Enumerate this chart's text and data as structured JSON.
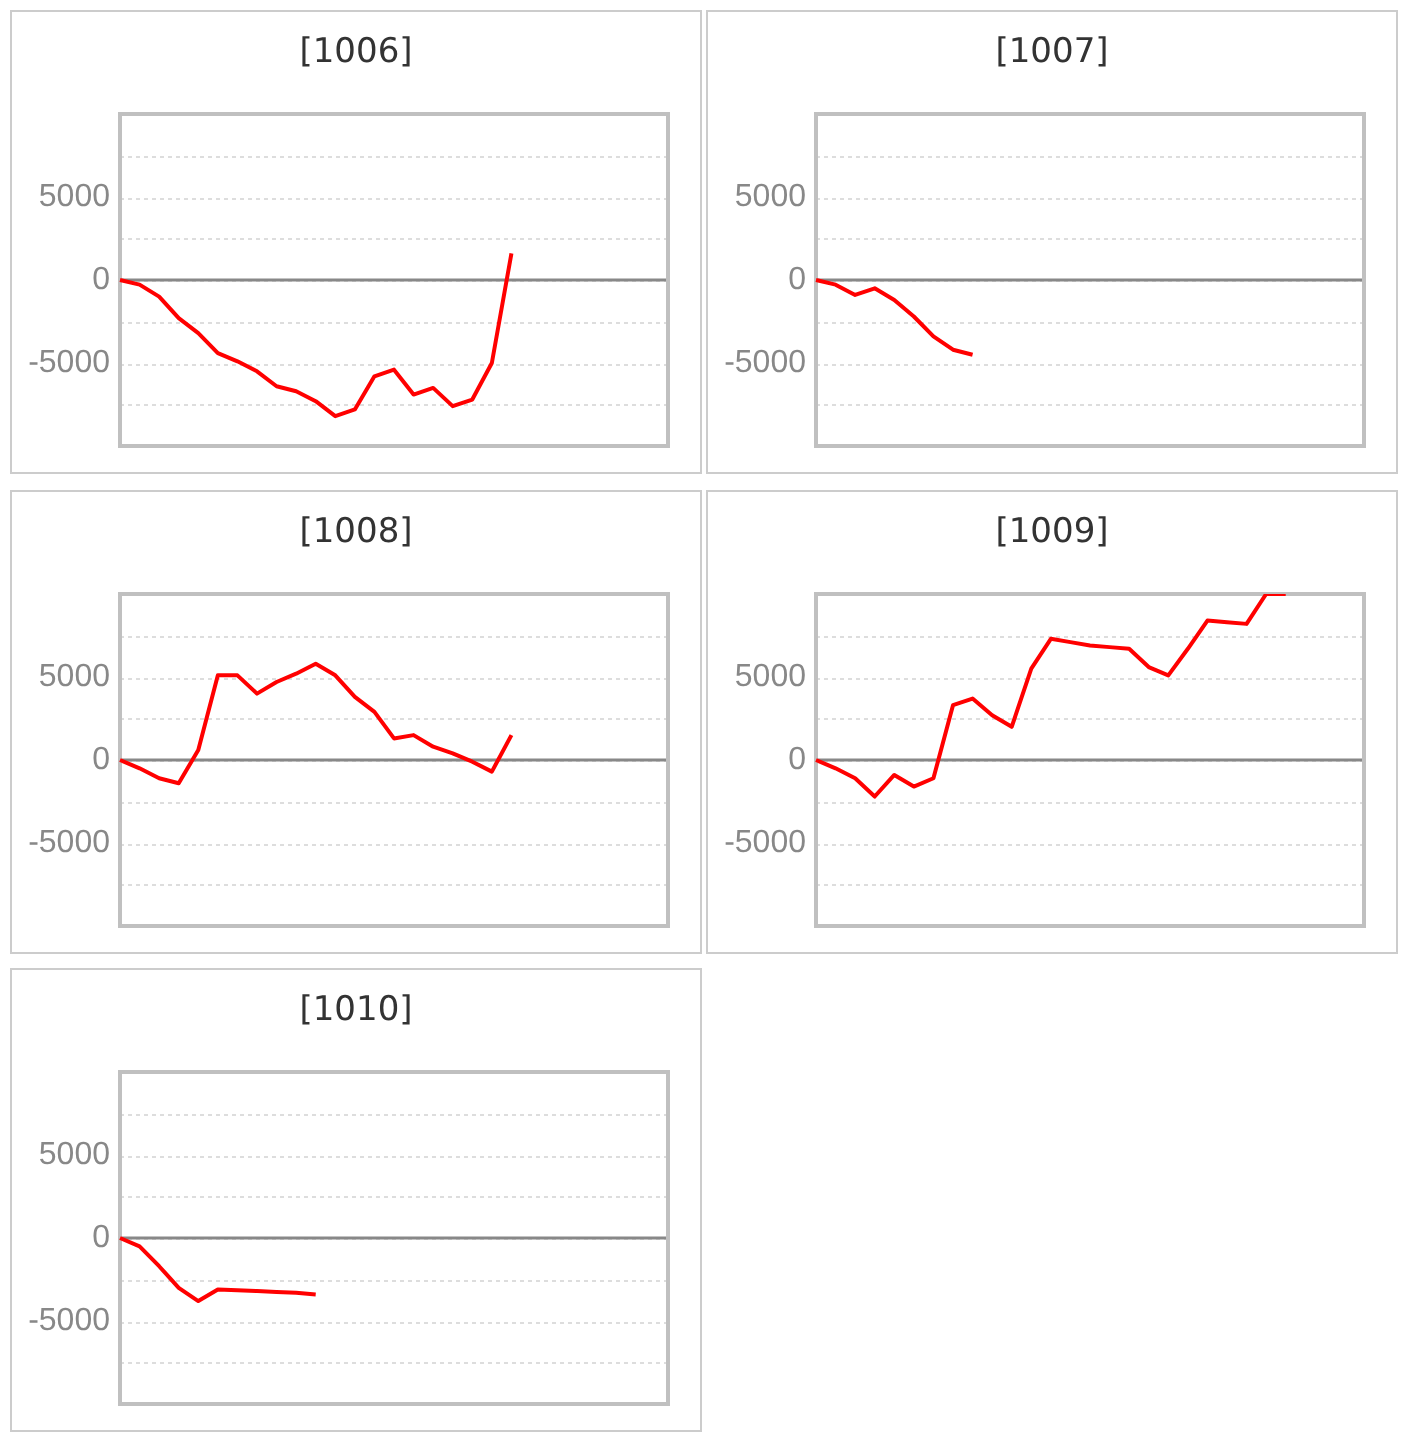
{
  "chart_data": [
    {
      "type": "line",
      "title": "[1006]",
      "categories": [
        null,
        null,
        null,
        null,
        null,
        null,
        null,
        null,
        null,
        null,
        null,
        null,
        null,
        null,
        null,
        null,
        null,
        null,
        null,
        null,
        null,
        null,
        null,
        null,
        null,
        null,
        null,
        null,
        null
      ],
      "series": [
        {
          "color": "#ff0000",
          "values": [
            0,
            -280,
            -1000,
            -2300,
            -3200,
            -4400,
            -4900,
            -5500,
            -6400,
            -6700,
            -7300,
            -8200,
            -7800,
            -5800,
            -5400,
            -6900,
            -6500,
            -7600,
            -7200,
            -5000,
            1600,
            null,
            null,
            null,
            null,
            null,
            null,
            null,
            null
          ]
        }
      ],
      "ylim": [
        -10000,
        10000
      ],
      "yticks": [
        {
          "value": -10000,
          "label": null
        },
        {
          "value": -7500,
          "label": null
        },
        {
          "value": -5000,
          "label": "-5000"
        },
        {
          "value": -2500,
          "label": null
        },
        {
          "value": 0,
          "label": "0"
        },
        {
          "value": 2500,
          "label": null
        },
        {
          "value": 5000,
          "label": "5000"
        },
        {
          "value": 7500,
          "label": null
        },
        {
          "value": 10000,
          "label": null
        }
      ],
      "grid": "y",
      "tick_labels": "y",
      "ref_lines": [
        {
          "axis": "y",
          "value": 0,
          "color": "#888888"
        }
      ]
    },
    {
      "type": "line",
      "title": "[1007]",
      "categories": [
        null,
        null,
        null,
        null,
        null,
        null,
        null,
        null,
        null,
        null,
        null,
        null,
        null,
        null,
        null,
        null,
        null,
        null,
        null,
        null,
        null,
        null,
        null,
        null,
        null,
        null,
        null,
        null,
        null
      ],
      "series": [
        {
          "color": "#ff0000",
          "values": [
            0,
            -280,
            -900,
            -500,
            -1200,
            -2200,
            -3400,
            -4200,
            -4500,
            null,
            null,
            null,
            null,
            null,
            null,
            null,
            null,
            null,
            null,
            null,
            null,
            null,
            null,
            null,
            null,
            null,
            null,
            null,
            null
          ]
        }
      ],
      "ylim": [
        -10000,
        10000
      ],
      "yticks": [
        {
          "value": -10000,
          "label": null
        },
        {
          "value": -7500,
          "label": null
        },
        {
          "value": -5000,
          "label": "-5000"
        },
        {
          "value": -2500,
          "label": null
        },
        {
          "value": 0,
          "label": "0"
        },
        {
          "value": 2500,
          "label": null
        },
        {
          "value": 5000,
          "label": "5000"
        },
        {
          "value": 7500,
          "label": null
        },
        {
          "value": 10000,
          "label": null
        }
      ],
      "grid": "y",
      "tick_labels": "y",
      "ref_lines": [
        {
          "axis": "y",
          "value": 0,
          "color": "#888888"
        }
      ]
    },
    {
      "type": "line",
      "title": "[1008]",
      "categories": [
        null,
        null,
        null,
        null,
        null,
        null,
        null,
        null,
        null,
        null,
        null,
        null,
        null,
        null,
        null,
        null,
        null,
        null,
        null,
        null,
        null,
        null,
        null,
        null,
        null,
        null,
        null,
        null,
        null
      ],
      "series": [
        {
          "color": "#ff0000",
          "values": [
            0,
            -500,
            -1100,
            -1400,
            600,
            5100,
            5100,
            4000,
            4700,
            5200,
            5800,
            5100,
            3800,
            2900,
            1300,
            1500,
            800,
            400,
            -100,
            -700,
            1500,
            null,
            null,
            null,
            null,
            null,
            null,
            null,
            null
          ]
        }
      ],
      "ylim": [
        -10000,
        10000
      ],
      "yticks": [
        {
          "value": -10000,
          "label": null
        },
        {
          "value": -7500,
          "label": null
        },
        {
          "value": -5000,
          "label": "-5000"
        },
        {
          "value": -2500,
          "label": null
        },
        {
          "value": 0,
          "label": "0"
        },
        {
          "value": 2500,
          "label": null
        },
        {
          "value": 5000,
          "label": "5000"
        },
        {
          "value": 7500,
          "label": null
        },
        {
          "value": 10000,
          "label": null
        }
      ],
      "grid": "y",
      "tick_labels": "y",
      "ref_lines": [
        {
          "axis": "y",
          "value": 0,
          "color": "#888888"
        }
      ]
    },
    {
      "type": "line",
      "title": "[1009]",
      "categories": [
        null,
        null,
        null,
        null,
        null,
        null,
        null,
        null,
        null,
        null,
        null,
        null,
        null,
        null,
        null,
        null,
        null,
        null,
        null,
        null,
        null,
        null,
        null,
        null,
        null,
        null,
        null,
        null,
        null
      ],
      "series": [
        {
          "color": "#ff0000",
          "values": [
            0,
            -500,
            -1100,
            -2200,
            -900,
            -1600,
            -1100,
            3300,
            3700,
            2700,
            2000,
            5500,
            7300,
            7100,
            6900,
            6800,
            6700,
            5600,
            5100,
            6700,
            8400,
            8300,
            8200,
            10000,
            10000,
            null,
            null,
            null,
            null
          ]
        }
      ],
      "ylim": [
        -10000,
        10000
      ],
      "yticks": [
        {
          "value": -10000,
          "label": null
        },
        {
          "value": -7500,
          "label": null
        },
        {
          "value": -5000,
          "label": "-5000"
        },
        {
          "value": -2500,
          "label": null
        },
        {
          "value": 0,
          "label": "0"
        },
        {
          "value": 2500,
          "label": null
        },
        {
          "value": 5000,
          "label": "5000"
        },
        {
          "value": 7500,
          "label": null
        },
        {
          "value": 10000,
          "label": null
        }
      ],
      "grid": "y",
      "tick_labels": "y",
      "ref_lines": [
        {
          "axis": "y",
          "value": 0,
          "color": "#888888"
        }
      ]
    },
    {
      "type": "line",
      "title": "[1010]",
      "categories": [
        null,
        null,
        null,
        null,
        null,
        null,
        null,
        null,
        null,
        null,
        null,
        null,
        null,
        null,
        null,
        null,
        null,
        null,
        null,
        null,
        null,
        null,
        null,
        null,
        null,
        null,
        null,
        null,
        null
      ],
      "series": [
        {
          "color": "#ff0000",
          "values": [
            0,
            -500,
            -1700,
            -3000,
            -3800,
            -3100,
            -3150,
            -3200,
            -3250,
            -3300,
            -3400,
            null,
            null,
            null,
            null,
            null,
            null,
            null,
            null,
            null,
            null,
            null,
            null,
            null,
            null,
            null,
            null,
            null,
            null
          ]
        }
      ],
      "ylim": [
        -10000,
        10000
      ],
      "yticks": [
        {
          "value": -10000,
          "label": null
        },
        {
          "value": -7500,
          "label": null
        },
        {
          "value": -5000,
          "label": "-5000"
        },
        {
          "value": -2500,
          "label": null
        },
        {
          "value": 0,
          "label": "0"
        },
        {
          "value": 2500,
          "label": null
        },
        {
          "value": 5000,
          "label": "5000"
        },
        {
          "value": 7500,
          "label": null
        },
        {
          "value": 10000,
          "label": null
        }
      ],
      "grid": "y",
      "tick_labels": "y",
      "ref_lines": [
        {
          "axis": "y",
          "value": 0,
          "color": "#888888"
        }
      ]
    }
  ]
}
